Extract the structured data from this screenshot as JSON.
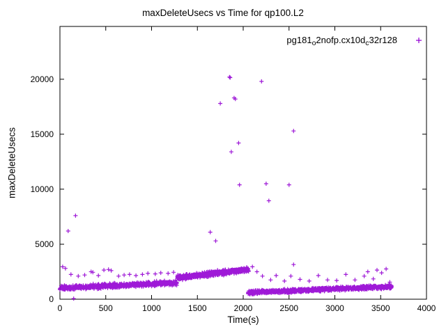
{
  "chart_data": {
    "type": "scatter",
    "title": "maxDeleteUsecs vs Time for qp100.L2",
    "xlabel": "Time(s)",
    "ylabel": "maxDeleteUsecs",
    "xlim": [
      0,
      4000
    ],
    "ylim": [
      0,
      24800
    ],
    "xticks": [
      0,
      500,
      1000,
      1500,
      2000,
      2500,
      3000,
      3500,
      4000
    ],
    "yticks": [
      0,
      5000,
      10000,
      15000,
      20000
    ],
    "grid": false,
    "legend_position": "top-right-inside",
    "marker": "plus",
    "color": "#9400d3",
    "legend": {
      "plain": "pg181_o2nofp.cx10d_c32r128",
      "parts": [
        {
          "text": "pg181"
        },
        {
          "text": "o",
          "sub": true
        },
        {
          "text": "2nofp.cx10d"
        },
        {
          "text": "c",
          "sub": true
        },
        {
          "text": "32r128"
        }
      ]
    },
    "series": [
      {
        "name": "pg181_o2nofp.cx10d_c32r128",
        "bands": [
          {
            "x": [
              0,
              1280
            ],
            "y_base": [
              1000,
              1500
            ],
            "spread": 280,
            "count": 700
          },
          {
            "x": [
              1280,
              2060
            ],
            "y_base": [
              1950,
              2700
            ],
            "spread": 300,
            "count": 600
          },
          {
            "x": [
              2050,
              3620
            ],
            "y_base": [
              600,
              1150
            ],
            "spread": 230,
            "count": 1000
          }
        ],
        "sparse": [
          [
            30,
            2950
          ],
          [
            60,
            2800
          ],
          [
            120,
            2250
          ],
          [
            200,
            2100
          ],
          [
            270,
            2200
          ],
          [
            340,
            2500
          ],
          [
            360,
            2450
          ],
          [
            420,
            2150
          ],
          [
            480,
            2650
          ],
          [
            530,
            2700
          ],
          [
            560,
            2600
          ],
          [
            640,
            2100
          ],
          [
            700,
            2200
          ],
          [
            760,
            2250
          ],
          [
            830,
            2150
          ],
          [
            900,
            2250
          ],
          [
            960,
            2350
          ],
          [
            1040,
            2300
          ],
          [
            1100,
            2400
          ],
          [
            1180,
            2350
          ],
          [
            1240,
            2450
          ],
          [
            2100,
            2950
          ],
          [
            2150,
            2500
          ],
          [
            2210,
            2100
          ],
          [
            2300,
            1750
          ],
          [
            2360,
            2150
          ],
          [
            2450,
            1650
          ],
          [
            2520,
            2100
          ],
          [
            2550,
            3150
          ],
          [
            2620,
            1800
          ],
          [
            2720,
            1650
          ],
          [
            2820,
            2150
          ],
          [
            2920,
            1750
          ],
          [
            3020,
            1700
          ],
          [
            3120,
            2250
          ],
          [
            3220,
            1750
          ],
          [
            3320,
            2100
          ],
          [
            3360,
            2500
          ],
          [
            3420,
            1850
          ],
          [
            3460,
            2650
          ],
          [
            3510,
            2400
          ],
          [
            3560,
            2750
          ],
          [
            3600,
            1550
          ]
        ],
        "outliers": [
          [
            90,
            6200
          ],
          [
            150,
            60
          ],
          [
            170,
            7600
          ],
          [
            1640,
            6100
          ],
          [
            1700,
            5300
          ],
          [
            1750,
            17800
          ],
          [
            1850,
            20200
          ],
          [
            1858,
            20150
          ],
          [
            1870,
            13400
          ],
          [
            1900,
            18300
          ],
          [
            1915,
            18200
          ],
          [
            1950,
            14200
          ],
          [
            1960,
            10400
          ],
          [
            2200,
            19800
          ],
          [
            2250,
            10500
          ],
          [
            2280,
            8950
          ],
          [
            2500,
            10400
          ],
          [
            2550,
            15300
          ]
        ]
      }
    ]
  }
}
